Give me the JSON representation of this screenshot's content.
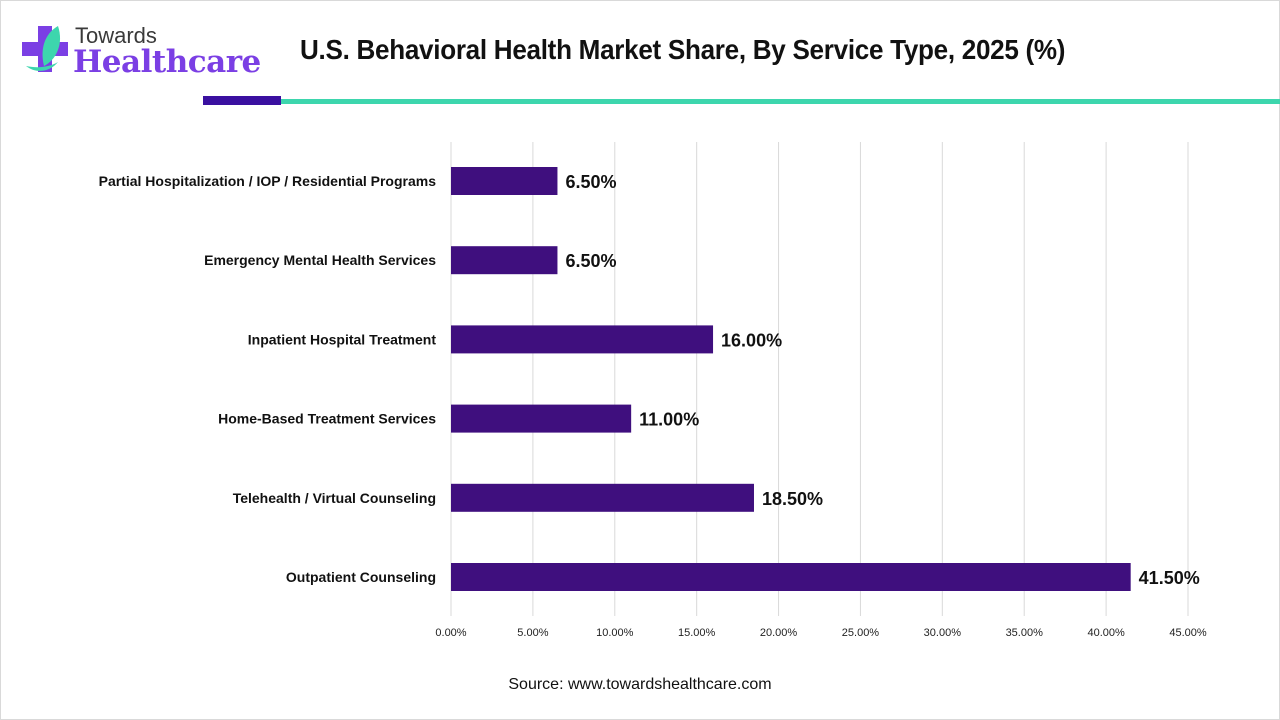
{
  "brand": {
    "line1": "Towards",
    "line2": "Healthcare",
    "colors": {
      "purple": "#7b3fe4",
      "teal": "#3dd6ad",
      "dark_purple": "#3a10a0"
    }
  },
  "icons": {
    "logo": "medical-cross-leaf-icon"
  },
  "source": "Source: www.towardshealthcare.com",
  "chart_data": {
    "type": "bar",
    "orientation": "horizontal",
    "title": "U.S. Behavioral Health Market Share, By Service Type, 2025 (%)",
    "xlabel": "",
    "ylabel": "",
    "categories": [
      "Partial Hospitalization / IOP / Residential Programs",
      "Emergency Mental Health Services",
      "Inpatient Hospital Treatment",
      "Home-Based Treatment Services",
      "Telehealth / Virtual Counseling",
      "Outpatient Counseling"
    ],
    "values": [
      6.5,
      6.5,
      16.0,
      11.0,
      18.5,
      41.5
    ],
    "data_labels": [
      "6.50%",
      "6.50%",
      "16.00%",
      "11.00%",
      "18.50%",
      "41.50%"
    ],
    "xlim": [
      0,
      45
    ],
    "xticks": [
      0,
      5,
      10,
      15,
      20,
      25,
      30,
      35,
      40,
      45
    ],
    "xtick_labels": [
      "0.00%",
      "5.00%",
      "10.00%",
      "15.00%",
      "20.00%",
      "25.00%",
      "30.00%",
      "35.00%",
      "40.00%",
      "45.00%"
    ],
    "grid": "vertical",
    "legend": "none",
    "bar_color": "#3f0f7e"
  }
}
